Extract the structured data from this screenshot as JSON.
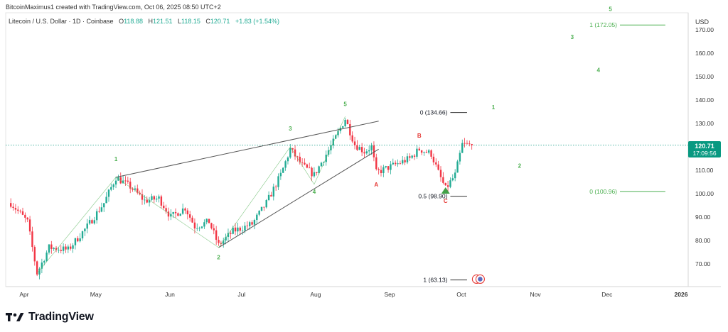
{
  "header": {
    "credit": "BitcoinMaximus1 created with TradingView.com, Oct 06, 2025 08:50 UTC+2",
    "symbol": "Litecoin / U.S. Dollar · 1D · Coinbase",
    "ohlc": {
      "open_label": "O",
      "open": "118.88",
      "high_label": "H",
      "high": "121.51",
      "low_label": "L",
      "low": "118.15",
      "close_label": "C",
      "close": "120.71",
      "change": "+1.83 (+1.54%)"
    },
    "currency": "USD"
  },
  "price_tag": {
    "value": "120.71",
    "countdown": "17:09:56"
  },
  "footer": {
    "brand": "TradingView"
  },
  "colors": {
    "up": "#22ab94",
    "down": "#f23645",
    "wave_green": "#4caf50",
    "wave_red": "#e53935",
    "line": "#555555"
  },
  "chart_data": {
    "type": "candlestick",
    "x_ticks": [
      "Apr",
      "May",
      "Jun",
      "Jul",
      "Aug",
      "Sep",
      "Oct",
      "Nov",
      "Dec",
      "2026"
    ],
    "y_ticks": [
      "70.00",
      "80.00",
      "90.00",
      "100.00",
      "110.00",
      "120.00",
      "130.00",
      "140.00",
      "150.00",
      "160.00",
      "170.00"
    ],
    "ylim": [
      60,
      178
    ],
    "last_price": 120.71,
    "price_path": [
      [
        "2025-03-27",
        96
      ],
      [
        "2025-04-03",
        88
      ],
      [
        "2025-04-07",
        66
      ],
      [
        "2025-04-12",
        77
      ],
      [
        "2025-04-20",
        76
      ],
      [
        "2025-04-28",
        86
      ],
      [
        "2025-05-05",
        96
      ],
      [
        "2025-05-10",
        107
      ],
      [
        "2025-05-16",
        103
      ],
      [
        "2025-05-22",
        97
      ],
      [
        "2025-05-28",
        98
      ],
      [
        "2025-06-02",
        90
      ],
      [
        "2025-06-08",
        94
      ],
      [
        "2025-06-12",
        86
      ],
      [
        "2025-06-18",
        88
      ],
      [
        "2025-06-22",
        78
      ],
      [
        "2025-06-28",
        84
      ],
      [
        "2025-07-06",
        87
      ],
      [
        "2025-07-12",
        96
      ],
      [
        "2025-07-18",
        108
      ],
      [
        "2025-07-22",
        119
      ],
      [
        "2025-07-27",
        112
      ],
      [
        "2025-08-01",
        108
      ],
      [
        "2025-08-05",
        115
      ],
      [
        "2025-08-09",
        122
      ],
      [
        "2025-08-14",
        132
      ],
      [
        "2025-08-18",
        121
      ],
      [
        "2025-08-22",
        118
      ],
      [
        "2025-08-25",
        120
      ],
      [
        "2025-08-27",
        109
      ],
      [
        "2025-09-03",
        112
      ],
      [
        "2025-09-10",
        115
      ],
      [
        "2025-09-14",
        119
      ],
      [
        "2025-09-19",
        117
      ],
      [
        "2025-09-22",
        109
      ],
      [
        "2025-09-25",
        102
      ],
      [
        "2025-09-29",
        108
      ],
      [
        "2025-10-02",
        121
      ],
      [
        "2025-10-06",
        120.71
      ]
    ],
    "trend_lines": [
      {
        "from": [
          "2025-05-10",
          107
        ],
        "to": [
          "2025-08-28",
          131
        ]
      },
      {
        "from": [
          "2025-06-22",
          77
        ],
        "to": [
          "2025-08-28",
          119
        ]
      }
    ],
    "waves": [
      {
        "label": "1",
        "date": "2025-05-10",
        "price": 114,
        "color": "green"
      },
      {
        "label": "2",
        "date": "2025-06-22",
        "price": 72,
        "color": "green"
      },
      {
        "label": "3",
        "date": "2025-07-22",
        "price": 127,
        "color": "green"
      },
      {
        "label": "4",
        "date": "2025-08-01",
        "price": 100,
        "color": "green"
      },
      {
        "label": "5",
        "date": "2025-08-14",
        "price": 137.5,
        "color": "green"
      },
      {
        "label": "A",
        "date": "2025-08-27",
        "price": 103,
        "color": "red"
      },
      {
        "label": "B",
        "date": "2025-09-14",
        "price": 124,
        "color": "red"
      },
      {
        "label": "C",
        "date": "2025-09-25",
        "price": 96,
        "color": "red"
      },
      {
        "label": "1",
        "date": "2025-10-15",
        "price": 136,
        "color": "green"
      },
      {
        "label": "2",
        "date": "2025-10-26",
        "price": 111,
        "color": "green"
      },
      {
        "label": "3",
        "date": "2025-11-17",
        "price": 166,
        "color": "green"
      },
      {
        "label": "4",
        "date": "2025-11-28",
        "price": 152,
        "color": "green"
      },
      {
        "label": "5",
        "date": "2025-12-03",
        "price": 178,
        "color": "green"
      }
    ],
    "fib_levels": [
      {
        "label": "0 (134.66)",
        "price": 134.66,
        "from": "2025-09-27",
        "to": "2025-10-04",
        "color": "black"
      },
      {
        "label": "0.5 (98.90)",
        "price": 98.9,
        "from": "2025-09-27",
        "to": "2025-10-04",
        "color": "black"
      },
      {
        "label": "1 (63.13)",
        "price": 63.13,
        "from": "2025-09-27",
        "to": "2025-10-04",
        "color": "black"
      },
      {
        "label": "1 (172.05)",
        "price": 172.05,
        "from": "2025-12-07",
        "to": "2025-12-26",
        "color": "green"
      },
      {
        "label": "0 (100.96)",
        "price": 100.96,
        "from": "2025-12-07",
        "to": "2025-12-26",
        "color": "green"
      }
    ]
  }
}
